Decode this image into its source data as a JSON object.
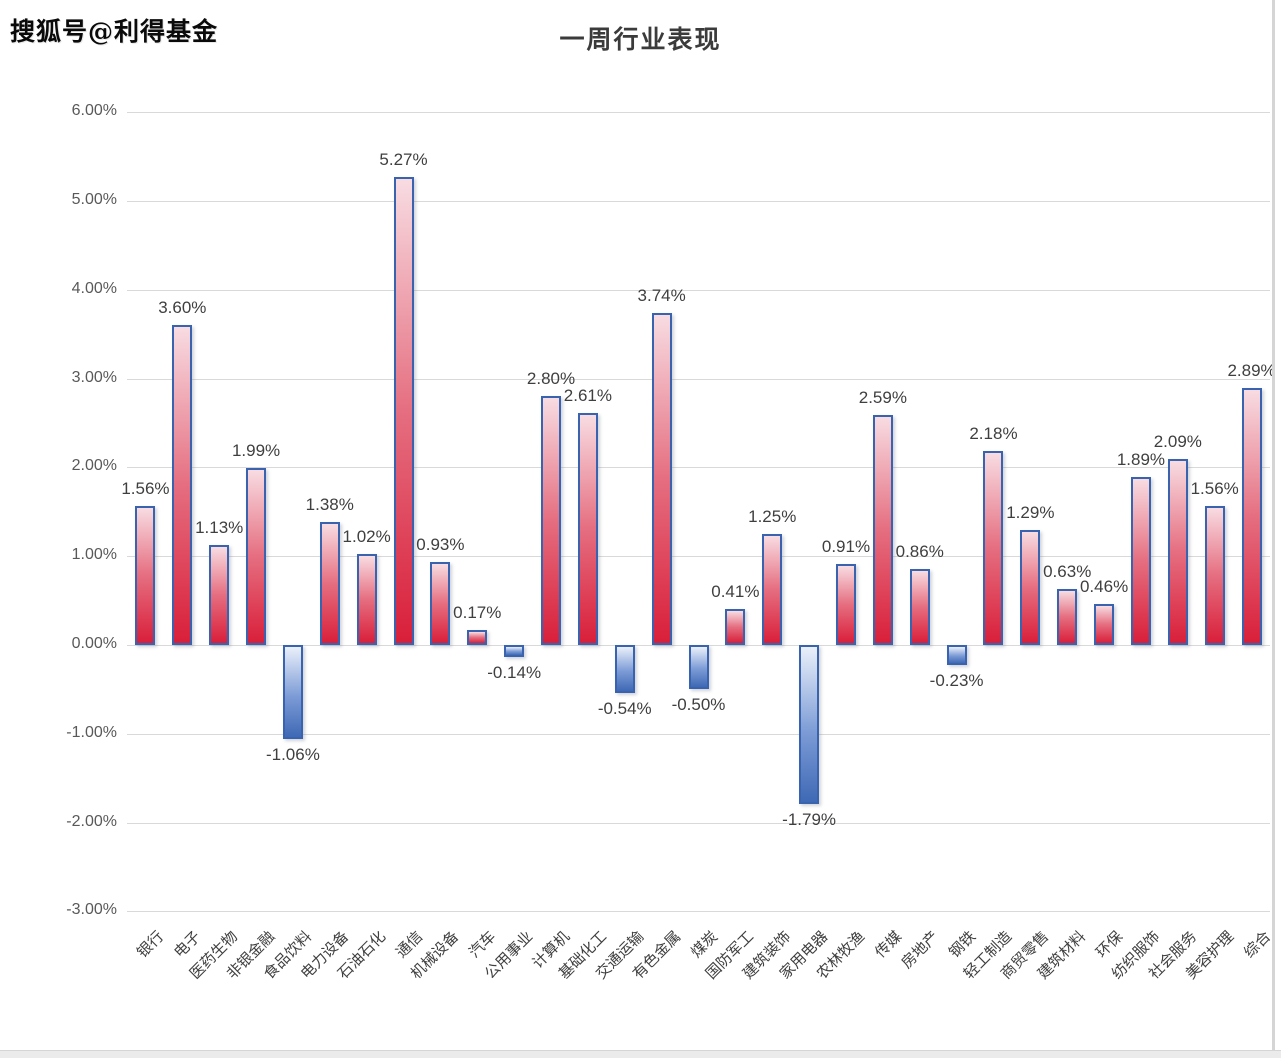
{
  "watermark": "搜狐号@利得基金",
  "chart_data": {
    "type": "bar",
    "title": "一周行业表现",
    "categories": [
      "银行",
      "电子",
      "医药生物",
      "非银金融",
      "食品饮料",
      "电力设备",
      "石油石化",
      "通信",
      "机械设备",
      "汽车",
      "公用事业",
      "计算机",
      "基础化工",
      "交通运输",
      "有色金属",
      "煤炭",
      "国防军工",
      "建筑装饰",
      "家用电器",
      "农林牧渔",
      "传媒",
      "房地产",
      "钢铁",
      "轻工制造",
      "商贸零售",
      "建筑材料",
      "环保",
      "纺织服饰",
      "社会服务",
      "美容护理",
      "综合"
    ],
    "values": [
      1.56,
      3.6,
      1.13,
      1.99,
      -1.06,
      1.38,
      1.02,
      5.27,
      0.93,
      0.17,
      -0.14,
      2.8,
      2.61,
      -0.54,
      3.74,
      -0.5,
      0.41,
      1.25,
      -1.79,
      0.91,
      2.59,
      0.86,
      -0.23,
      2.18,
      1.29,
      0.63,
      0.46,
      1.89,
      2.09,
      1.56,
      2.89
    ],
    "value_labels": [
      "1.56%",
      "3.60%",
      "1.13%",
      "1.99%",
      "-1.06%",
      "1.38%",
      "1.02%",
      "5.27%",
      "0.93%",
      "0.17%",
      "-0.14%",
      "2.80%",
      "2.61%",
      "-0.54%",
      "3.74%",
      "-0.50%",
      "0.41%",
      "1.25%",
      "-1.79%",
      "0.91%",
      "2.59%",
      "0.86%",
      "-0.23%",
      "2.18%",
      "1.29%",
      "0.63%",
      "0.46%",
      "1.89%",
      "2.09%",
      "1.56%",
      "2.89%"
    ],
    "xlabel": "",
    "ylabel": "",
    "y_ticks": [
      "6.00%",
      "5.00%",
      "4.00%",
      "3.00%",
      "2.00%",
      "1.00%",
      "0.00%",
      "-1.00%",
      "-2.00%",
      "-3.00%"
    ],
    "y_tick_values": [
      6,
      5,
      4,
      3,
      2,
      1,
      0,
      -1,
      -2,
      -3
    ],
    "ylim": [
      -3,
      6
    ],
    "grid": true,
    "legend": "none",
    "colors": {
      "bar_positive_top": "#F8DCE2",
      "bar_positive_bottom": "#D91F3A",
      "bar_negative_top": "#EAF0FA",
      "bar_negative_bottom": "#3F69B5",
      "bar_border": "#3A63AF",
      "gridline": "#D9D9D9",
      "axis_text": "#595959",
      "data_label": "#3F3F3F"
    }
  }
}
